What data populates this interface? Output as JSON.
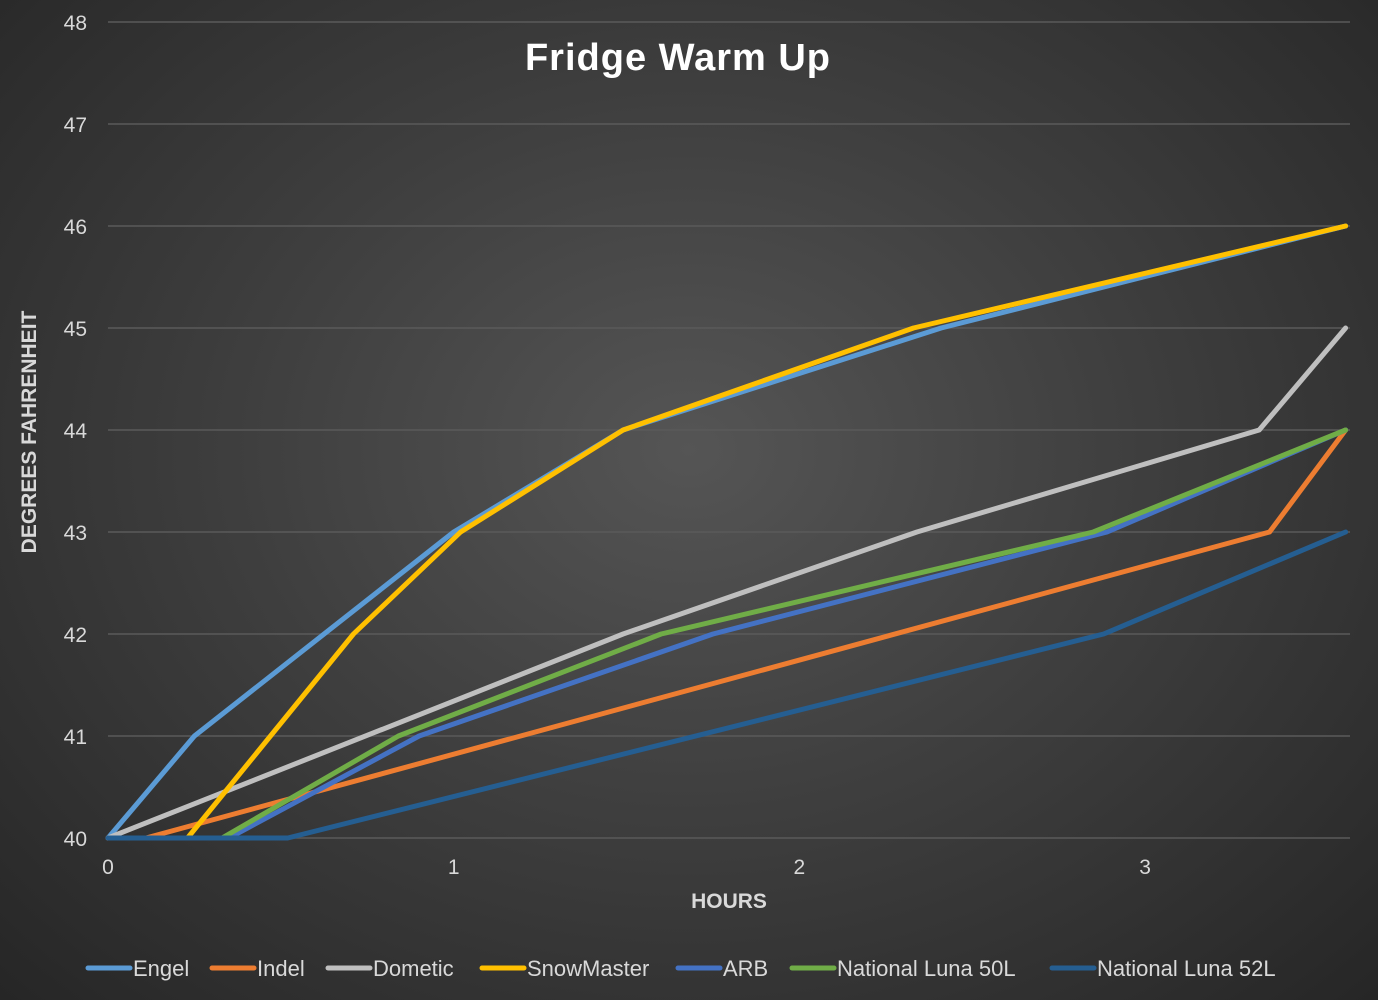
{
  "chart_data": {
    "type": "line",
    "title": "Fridge Warm Up",
    "xlabel": "HOURS",
    "ylabel": "DEGREES FAHRENHEIT",
    "xlim": [
      0,
      3.58
    ],
    "ylim": [
      40,
      48
    ],
    "xticks": [
      "0",
      "1",
      "2",
      "3"
    ],
    "yticks": [
      "40",
      "41",
      "42",
      "43",
      "44",
      "45",
      "46",
      "47",
      "48"
    ],
    "grid": true,
    "legend_position": "bottom",
    "series": [
      {
        "name": "Engel",
        "color": "#5b9bd5",
        "points": [
          [
            0,
            40
          ],
          [
            0.25,
            41
          ],
          [
            1,
            43
          ],
          [
            1.49,
            44
          ],
          [
            2.41,
            45
          ],
          [
            3.58,
            46
          ]
        ]
      },
      {
        "name": "Indel",
        "color": "#ed7d31",
        "points": [
          [
            0.11,
            40
          ],
          [
            3.36,
            43
          ],
          [
            3.58,
            44
          ]
        ]
      },
      {
        "name": "Dometic",
        "color": "#bfbfbf",
        "points": [
          [
            0,
            40
          ],
          [
            1.49,
            42
          ],
          [
            2.34,
            43
          ],
          [
            3.33,
            44
          ],
          [
            3.58,
            45
          ]
        ]
      },
      {
        "name": "SnowMaster",
        "color": "#ffc000",
        "points": [
          [
            0.23,
            40
          ],
          [
            0.71,
            42
          ],
          [
            1.02,
            43
          ],
          [
            1.49,
            44
          ],
          [
            2.33,
            45
          ],
          [
            3.58,
            46
          ]
        ]
      },
      {
        "name": "ARB",
        "color": "#4472c4",
        "points": [
          [
            0.35,
            40
          ],
          [
            0.9,
            41
          ],
          [
            1.75,
            42
          ],
          [
            2.89,
            43
          ],
          [
            3.58,
            44
          ]
        ]
      },
      {
        "name": "National Luna 50L",
        "color": "#70ad47",
        "points": [
          [
            0.33,
            40
          ],
          [
            0.84,
            41
          ],
          [
            1.6,
            42
          ],
          [
            2.85,
            43
          ],
          [
            3.58,
            44
          ]
        ]
      },
      {
        "name": "National Luna 52L",
        "color": "#255e91",
        "points": [
          [
            0,
            40
          ],
          [
            0.52,
            40
          ],
          [
            2.88,
            42
          ],
          [
            3.58,
            43
          ]
        ]
      }
    ]
  }
}
